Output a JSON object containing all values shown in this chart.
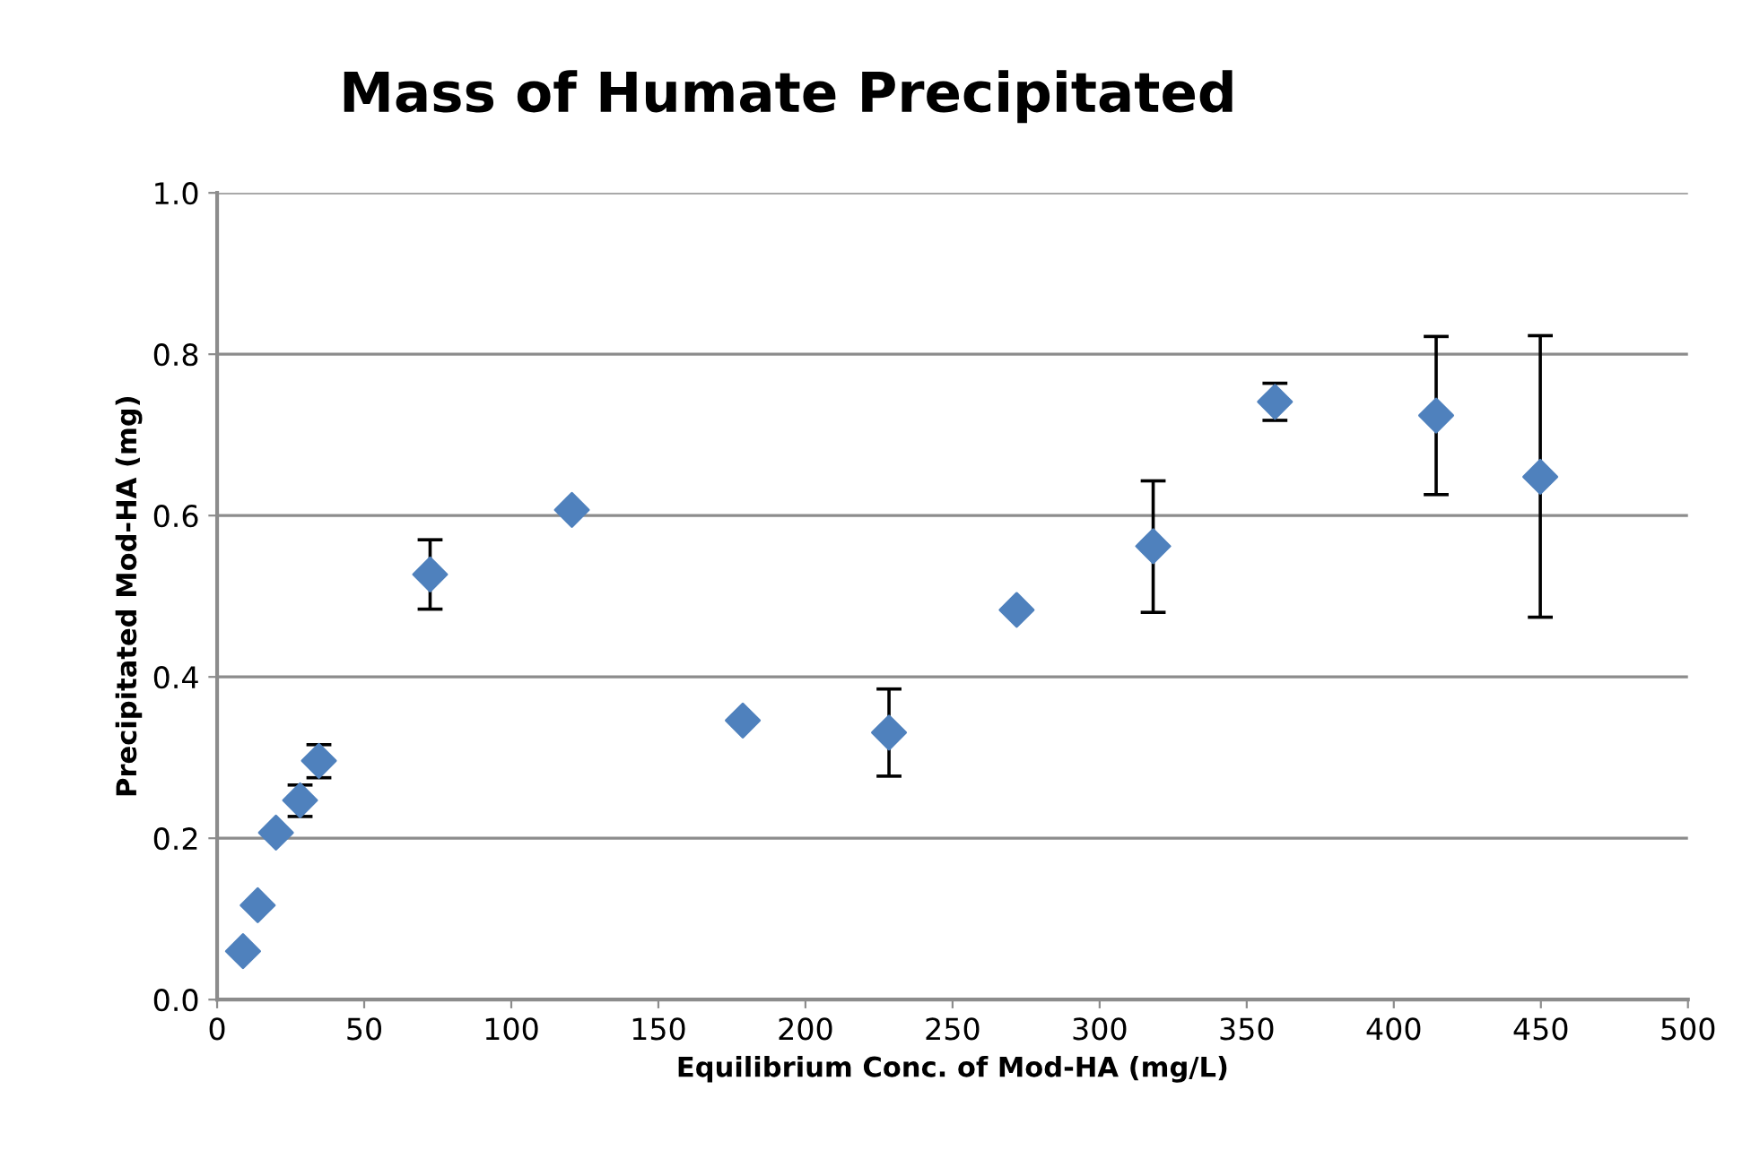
{
  "chart_data": {
    "type": "scatter",
    "title": "Mass of Humate Precipitated",
    "xlabel": "Equilibrium Conc. of Mod-HA (mg/L)",
    "ylabel": "Precipitated Mod-HA (mg)",
    "x": [
      8.8,
      13.8,
      20,
      28.2,
      34.6,
      72.4,
      120.6,
      178.7,
      228.4,
      271.8,
      318.2,
      359.6,
      414.4,
      449.8
    ],
    "series": [
      {
        "color": "#4f81bd",
        "values": [
          0.06,
          0.117,
          0.207,
          0.247,
          0.296,
          0.527,
          0.607,
          0.346,
          0.331,
          0.483,
          0.562,
          0.741,
          0.724,
          0.648
        ],
        "errors": [
          null,
          null,
          null,
          [
            0.227,
            0.266
          ],
          [
            0.275,
            0.316
          ],
          [
            0.484,
            0.57
          ],
          null,
          null,
          [
            0.277,
            0.385
          ],
          null,
          [
            0.48,
            0.643
          ],
          [
            0.718,
            0.764
          ],
          [
            0.626,
            0.822
          ],
          [
            0.474,
            0.823
          ]
        ]
      }
    ],
    "xlim": [
      0,
      500
    ],
    "xticks": [
      0,
      50,
      100,
      150,
      200,
      250,
      300,
      350,
      400,
      450,
      500
    ],
    "ylim": [
      0,
      1.0
    ],
    "yticks": [
      {
        "value": 0,
        "label": "0.0"
      },
      {
        "value": 0.2,
        "label": "0.2"
      },
      {
        "value": 0.4,
        "label": "0.4"
      },
      {
        "value": 0.6,
        "label": "0.6"
      },
      {
        "value": 0.8,
        "label": "0.8"
      },
      {
        "value": 1.0,
        "label": "1.0"
      }
    ],
    "grid": "y",
    "marker": "diamond",
    "legend": false
  }
}
